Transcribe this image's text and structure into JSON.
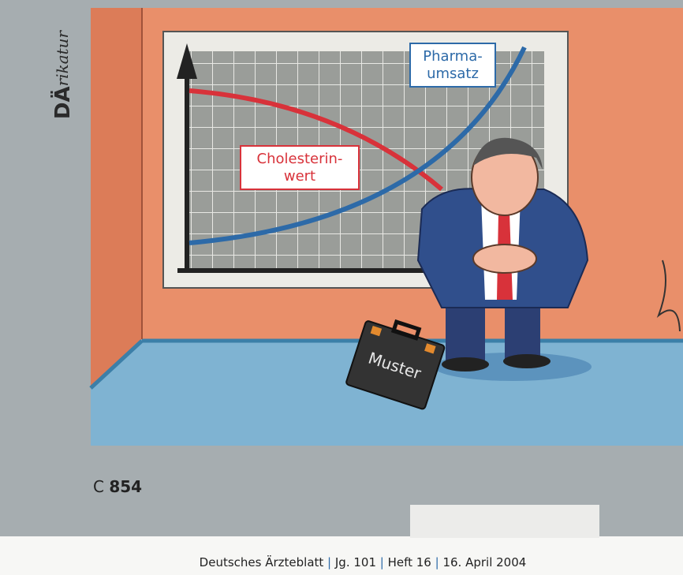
{
  "masthead": {
    "prefix": "DÄ",
    "suffix": "rikatur"
  },
  "cartoon": {
    "chart_labels": {
      "pharma": [
        "Pharma-",
        "umsatz"
      ],
      "cholesterin": [
        "Cholesterin-",
        "wert"
      ]
    },
    "briefcase": "Muster"
  },
  "page_number": {
    "prefix": "C",
    "number": "854"
  },
  "footer": [
    "Deutsches Ärzteblatt",
    "Jg. 101",
    "Heft 16",
    "16. April 2004"
  ]
}
